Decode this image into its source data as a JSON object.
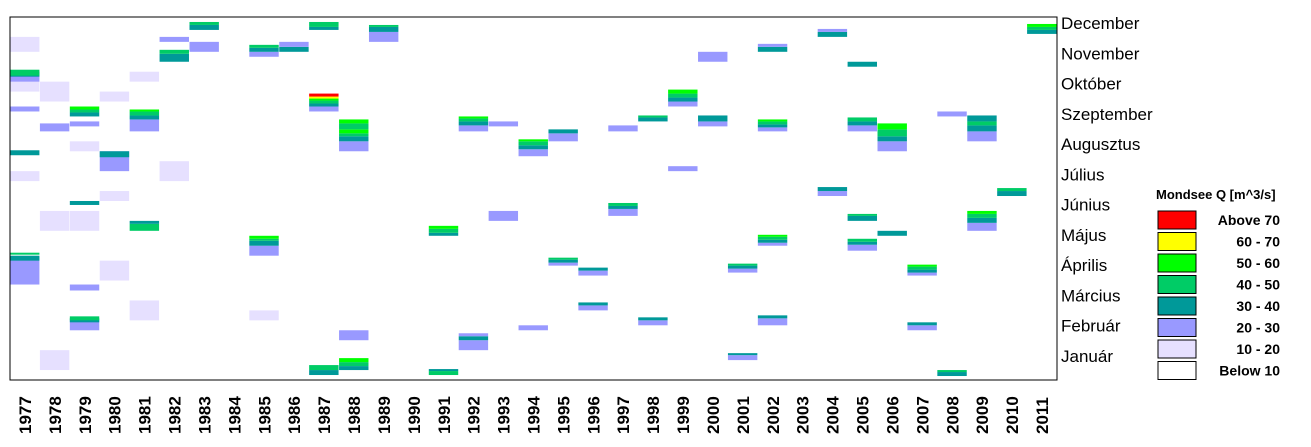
{
  "chart_data": {
    "type": "heatmap",
    "title": "",
    "xlabel": "",
    "ylabel": "",
    "x": [
      "1977",
      "1978",
      "1979",
      "1980",
      "1981",
      "1982",
      "1983",
      "1984",
      "1985",
      "1986",
      "1987",
      "1988",
      "1989",
      "1990",
      "1991",
      "1992",
      "1993",
      "1994",
      "1995",
      "1996",
      "1997",
      "1998",
      "1999",
      "2000",
      "2001",
      "2002",
      "2003",
      "2004",
      "2005",
      "2006",
      "2007",
      "2008",
      "2009",
      "2010",
      "2011"
    ],
    "y": [
      "December",
      "November",
      "Október",
      "Szeptember",
      "Augusztus",
      "Július",
      "Június",
      "Május",
      "Április",
      "Március",
      "Február",
      "Január"
    ],
    "grid": false,
    "legend": {
      "title": "Mondsee Q [m^3/s]",
      "placement": "right",
      "items": [
        {
          "label": "Above 70",
          "color": "#ff0000"
        },
        {
          "label": "60 - 70",
          "color": "#ffff00"
        },
        {
          "label": "50 - 60",
          "color": "#00ff00"
        },
        {
          "label": "40 - 50",
          "color": "#00cc66"
        },
        {
          "label": "30 - 40",
          "color": "#009999"
        },
        {
          "label": "20 - 30",
          "color": "#9999ff"
        },
        {
          "label": "10 - 20",
          "color": "#e6e0ff"
        },
        {
          "label": "Below 10",
          "color": "#ffffff"
        }
      ]
    },
    "note_classes": "Cell values are class indices 0-7 (0=Below 10, 1=10-20, 2=20-30, 3=30-40, 4=40-50, 5=50-60, 6=60-70, 7=Above 70); each event lists [year, start_day_of_year, end_day_of_year, class].",
    "events": [
      [
        "1977",
        96,
        124,
        2
      ],
      [
        "1977",
        120,
        125,
        3
      ],
      [
        "1977",
        126,
        128,
        4
      ],
      [
        "1977",
        200,
        210,
        1
      ],
      [
        "1977",
        226,
        231,
        3
      ],
      [
        "1977",
        270,
        275,
        2
      ],
      [
        "1977",
        290,
        305,
        1
      ],
      [
        "1977",
        300,
        306,
        2
      ],
      [
        "1977",
        305,
        310,
        3
      ],
      [
        "1977",
        306,
        312,
        4
      ],
      [
        "1977",
        330,
        345,
        1
      ],
      [
        "1978",
        10,
        30,
        1
      ],
      [
        "1978",
        150,
        170,
        1
      ],
      [
        "1978",
        250,
        258,
        2
      ],
      [
        "1978",
        280,
        300,
        1
      ],
      [
        "1979",
        50,
        60,
        2
      ],
      [
        "1979",
        58,
        62,
        3
      ],
      [
        "1979",
        60,
        64,
        4
      ],
      [
        "1979",
        90,
        96,
        2
      ],
      [
        "1979",
        150,
        170,
        1
      ],
      [
        "1979",
        176,
        180,
        3
      ],
      [
        "1979",
        230,
        240,
        1
      ],
      [
        "1979",
        255,
        260,
        2
      ],
      [
        "1979",
        265,
        269,
        3
      ],
      [
        "1979",
        269,
        272,
        4
      ],
      [
        "1979",
        272,
        275,
        5
      ],
      [
        "1980",
        210,
        230,
        2
      ],
      [
        "1980",
        224,
        230,
        3
      ],
      [
        "1980",
        180,
        190,
        1
      ],
      [
        "1980",
        100,
        120,
        1
      ],
      [
        "1980",
        280,
        290,
        1
      ],
      [
        "1981",
        150,
        157,
        4
      ],
      [
        "1981",
        157,
        160,
        3
      ],
      [
        "1981",
        250,
        262,
        2
      ],
      [
        "1981",
        262,
        266,
        3
      ],
      [
        "1981",
        266,
        270,
        4
      ],
      [
        "1981",
        270,
        272,
        5
      ],
      [
        "1981",
        300,
        310,
        1
      ],
      [
        "1981",
        60,
        80,
        1
      ],
      [
        "1982",
        340,
        345,
        2
      ],
      [
        "1982",
        320,
        328,
        3
      ],
      [
        "1982",
        328,
        332,
        4
      ],
      [
        "1982",
        200,
        220,
        1
      ],
      [
        "1983",
        352,
        357,
        3
      ],
      [
        "1983",
        357,
        360,
        4
      ],
      [
        "1983",
        330,
        340,
        2
      ],
      [
        "1985",
        125,
        135,
        2
      ],
      [
        "1985",
        135,
        140,
        3
      ],
      [
        "1985",
        140,
        142,
        4
      ],
      [
        "1985",
        142,
        145,
        5
      ],
      [
        "1985",
        325,
        330,
        2
      ],
      [
        "1985",
        330,
        334,
        3
      ],
      [
        "1985",
        334,
        337,
        4
      ],
      [
        "1985",
        60,
        70,
        1
      ],
      [
        "1986",
        330,
        335,
        3
      ],
      [
        "1986",
        335,
        340,
        2
      ],
      [
        "1987",
        5,
        10,
        3
      ],
      [
        "1987",
        10,
        15,
        4
      ],
      [
        "1987",
        270,
        275,
        2
      ],
      [
        "1987",
        275,
        278,
        3
      ],
      [
        "1987",
        278,
        281,
        4
      ],
      [
        "1987",
        281,
        283,
        5
      ],
      [
        "1987",
        283,
        285,
        6
      ],
      [
        "1987",
        285,
        288,
        7
      ],
      [
        "1987",
        352,
        355,
        3
      ],
      [
        "1987",
        355,
        360,
        4
      ],
      [
        "1988",
        10,
        14,
        3
      ],
      [
        "1988",
        14,
        18,
        4
      ],
      [
        "1988",
        18,
        22,
        5
      ],
      [
        "1988",
        230,
        240,
        2
      ],
      [
        "1988",
        240,
        245,
        3
      ],
      [
        "1988",
        245,
        248,
        4
      ],
      [
        "1988",
        248,
        252,
        5
      ],
      [
        "1988",
        252,
        258,
        4
      ],
      [
        "1988",
        258,
        262,
        5
      ],
      [
        "1988",
        40,
        50,
        2
      ],
      [
        "1989",
        340,
        350,
        2
      ],
      [
        "1989",
        350,
        355,
        3
      ],
      [
        "1989",
        355,
        357,
        4
      ],
      [
        "1991",
        145,
        148,
        3
      ],
      [
        "1991",
        148,
        152,
        4
      ],
      [
        "1991",
        152,
        155,
        5
      ],
      [
        "1991",
        5,
        9,
        4
      ],
      [
        "1991",
        9,
        11,
        3
      ],
      [
        "1992",
        30,
        40,
        2
      ],
      [
        "1992",
        40,
        44,
        3
      ],
      [
        "1992",
        44,
        47,
        2
      ],
      [
        "1992",
        250,
        256,
        2
      ],
      [
        "1992",
        256,
        260,
        3
      ],
      [
        "1992",
        260,
        263,
        4
      ],
      [
        "1992",
        263,
        265,
        5
      ],
      [
        "1993",
        160,
        170,
        2
      ],
      [
        "1993",
        255,
        260,
        2
      ],
      [
        "1994",
        225,
        232,
        2
      ],
      [
        "1994",
        232,
        236,
        3
      ],
      [
        "1994",
        236,
        240,
        4
      ],
      [
        "1994",
        240,
        242,
        5
      ],
      [
        "1994",
        50,
        55,
        2
      ],
      [
        "1995",
        115,
        118,
        2
      ],
      [
        "1995",
        118,
        121,
        3
      ],
      [
        "1995",
        121,
        123,
        4
      ],
      [
        "1995",
        240,
        248,
        2
      ],
      [
        "1995",
        248,
        252,
        3
      ],
      [
        "1996",
        70,
        75,
        2
      ],
      [
        "1996",
        75,
        78,
        3
      ],
      [
        "1996",
        105,
        110,
        2
      ],
      [
        "1996",
        110,
        113,
        3
      ],
      [
        "1997",
        165,
        172,
        2
      ],
      [
        "1997",
        172,
        175,
        3
      ],
      [
        "1997",
        175,
        178,
        4
      ],
      [
        "1997",
        250,
        256,
        2
      ],
      [
        "1998",
        55,
        60,
        2
      ],
      [
        "1998",
        60,
        63,
        3
      ],
      [
        "1998",
        260,
        264,
        3
      ],
      [
        "1998",
        264,
        266,
        4
      ],
      [
        "1999",
        275,
        280,
        2
      ],
      [
        "1999",
        280,
        284,
        3
      ],
      [
        "1999",
        284,
        288,
        4
      ],
      [
        "1999",
        288,
        292,
        5
      ],
      [
        "1999",
        210,
        215,
        2
      ],
      [
        "2000",
        255,
        260,
        2
      ],
      [
        "2000",
        260,
        266,
        3
      ],
      [
        "2000",
        320,
        330,
        2
      ],
      [
        "2001",
        20,
        25,
        2
      ],
      [
        "2001",
        25,
        27,
        3
      ],
      [
        "2001",
        108,
        112,
        2
      ],
      [
        "2001",
        112,
        115,
        3
      ],
      [
        "2001",
        115,
        117,
        4
      ],
      [
        "2002",
        55,
        62,
        2
      ],
      [
        "2002",
        62,
        65,
        3
      ],
      [
        "2002",
        135,
        138,
        2
      ],
      [
        "2002",
        138,
        141,
        3
      ],
      [
        "2002",
        141,
        144,
        4
      ],
      [
        "2002",
        144,
        146,
        5
      ],
      [
        "2002",
        250,
        254,
        2
      ],
      [
        "2002",
        254,
        257,
        3
      ],
      [
        "2002",
        257,
        260,
        4
      ],
      [
        "2002",
        260,
        262,
        5
      ],
      [
        "2002",
        330,
        335,
        3
      ],
      [
        "2002",
        335,
        338,
        2
      ],
      [
        "2004",
        185,
        190,
        2
      ],
      [
        "2004",
        190,
        194,
        3
      ],
      [
        "2004",
        345,
        350,
        3
      ],
      [
        "2004",
        350,
        353,
        2
      ],
      [
        "2005",
        130,
        136,
        2
      ],
      [
        "2005",
        136,
        139,
        3
      ],
      [
        "2005",
        139,
        142,
        4
      ],
      [
        "2005",
        160,
        165,
        3
      ],
      [
        "2005",
        165,
        167,
        4
      ],
      [
        "2005",
        250,
        256,
        2
      ],
      [
        "2005",
        256,
        260,
        3
      ],
      [
        "2005",
        260,
        264,
        4
      ],
      [
        "2005",
        315,
        320,
        3
      ],
      [
        "2006",
        145,
        150,
        3
      ],
      [
        "2006",
        230,
        240,
        2
      ],
      [
        "2006",
        240,
        245,
        3
      ],
      [
        "2006",
        245,
        252,
        4
      ],
      [
        "2006",
        252,
        258,
        5
      ],
      [
        "2007",
        105,
        108,
        2
      ],
      [
        "2007",
        108,
        111,
        3
      ],
      [
        "2007",
        111,
        114,
        4
      ],
      [
        "2007",
        114,
        116,
        5
      ],
      [
        "2007",
        50,
        55,
        2
      ],
      [
        "2007",
        55,
        58,
        3
      ],
      [
        "2008",
        4,
        8,
        3
      ],
      [
        "2008",
        8,
        10,
        4
      ],
      [
        "2008",
        265,
        270,
        2
      ],
      [
        "2009",
        150,
        158,
        2
      ],
      [
        "2009",
        158,
        163,
        3
      ],
      [
        "2009",
        163,
        167,
        4
      ],
      [
        "2009",
        167,
        170,
        5
      ],
      [
        "2009",
        240,
        250,
        2
      ],
      [
        "2009",
        250,
        256,
        3
      ],
      [
        "2009",
        256,
        260,
        4
      ],
      [
        "2009",
        260,
        266,
        3
      ],
      [
        "2010",
        185,
        190,
        3
      ],
      [
        "2010",
        190,
        193,
        4
      ],
      [
        "2011",
        348,
        352,
        3
      ],
      [
        "2011",
        352,
        355,
        4
      ],
      [
        "2011",
        355,
        358,
        5
      ]
    ]
  }
}
